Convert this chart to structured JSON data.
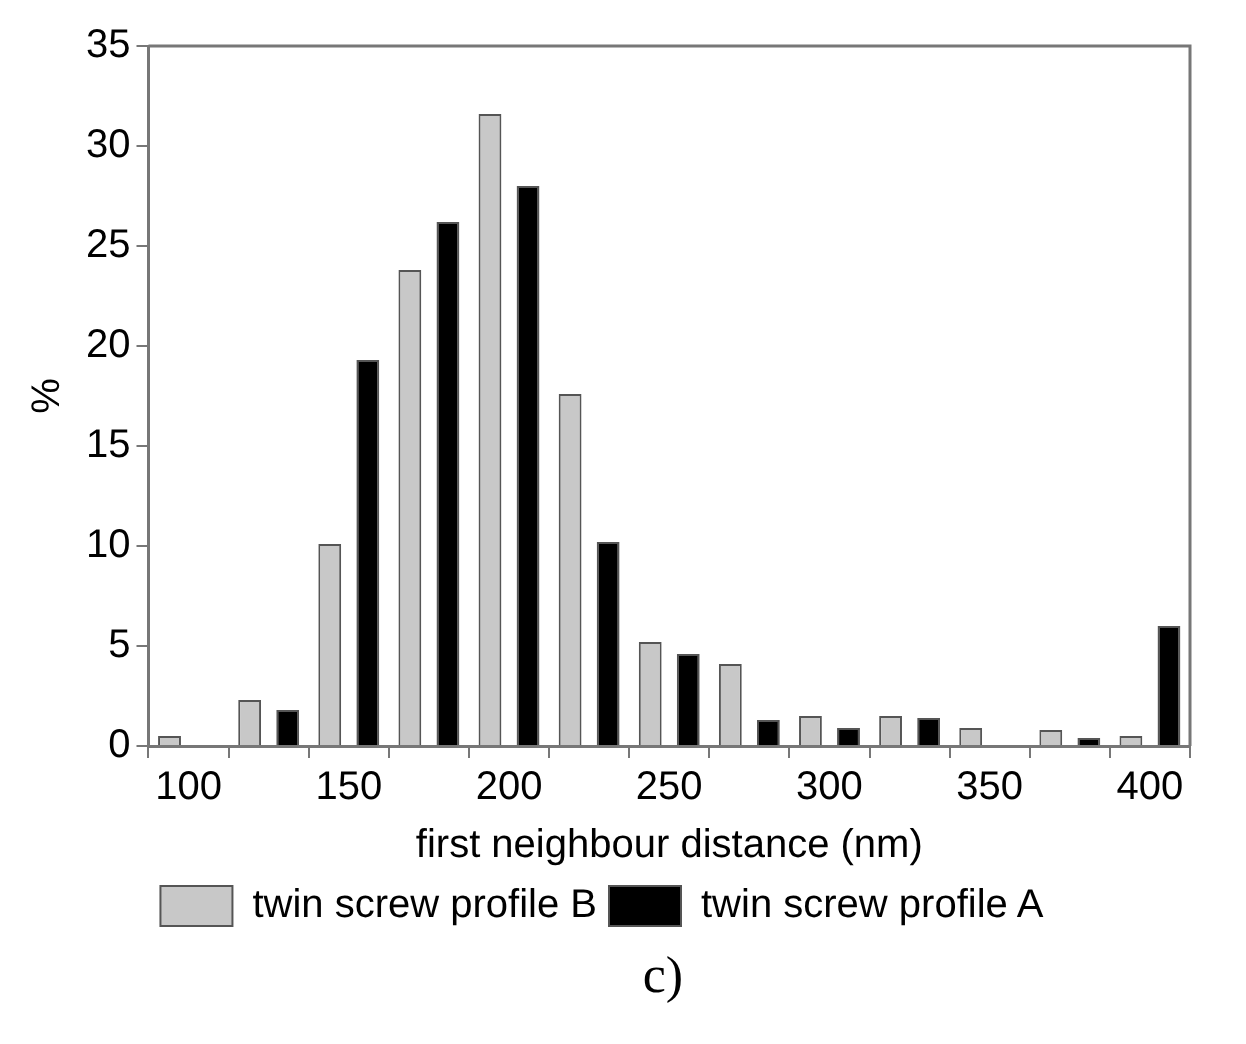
{
  "chart_data": {
    "type": "bar",
    "xlabel": "first neighbour distance (nm)",
    "ylabel": "%",
    "categories": [
      "100",
      null,
      "150",
      null,
      "200",
      null,
      "250",
      null,
      "300",
      null,
      "350",
      null,
      "400"
    ],
    "series": [
      {
        "name": "twin screw profile B",
        "color": "#c8c8c8",
        "values": [
          0.5,
          2.3,
          10.1,
          23.8,
          31.6,
          17.6,
          5.2,
          4.1,
          1.5,
          1.5,
          0.9,
          0.8,
          0.5
        ]
      },
      {
        "name": "twin screw profile A",
        "color": "#000000",
        "values": [
          null,
          1.8,
          19.3,
          26.2,
          28.0,
          10.2,
          4.6,
          1.3,
          0.9,
          1.4,
          null,
          0.4,
          6.0
        ]
      }
    ],
    "ylim": [
      0,
      35
    ],
    "yticks": [
      0,
      5,
      10,
      15,
      20,
      25,
      30,
      35
    ],
    "legend": "bottom",
    "annotations": [
      "c)"
    ]
  }
}
